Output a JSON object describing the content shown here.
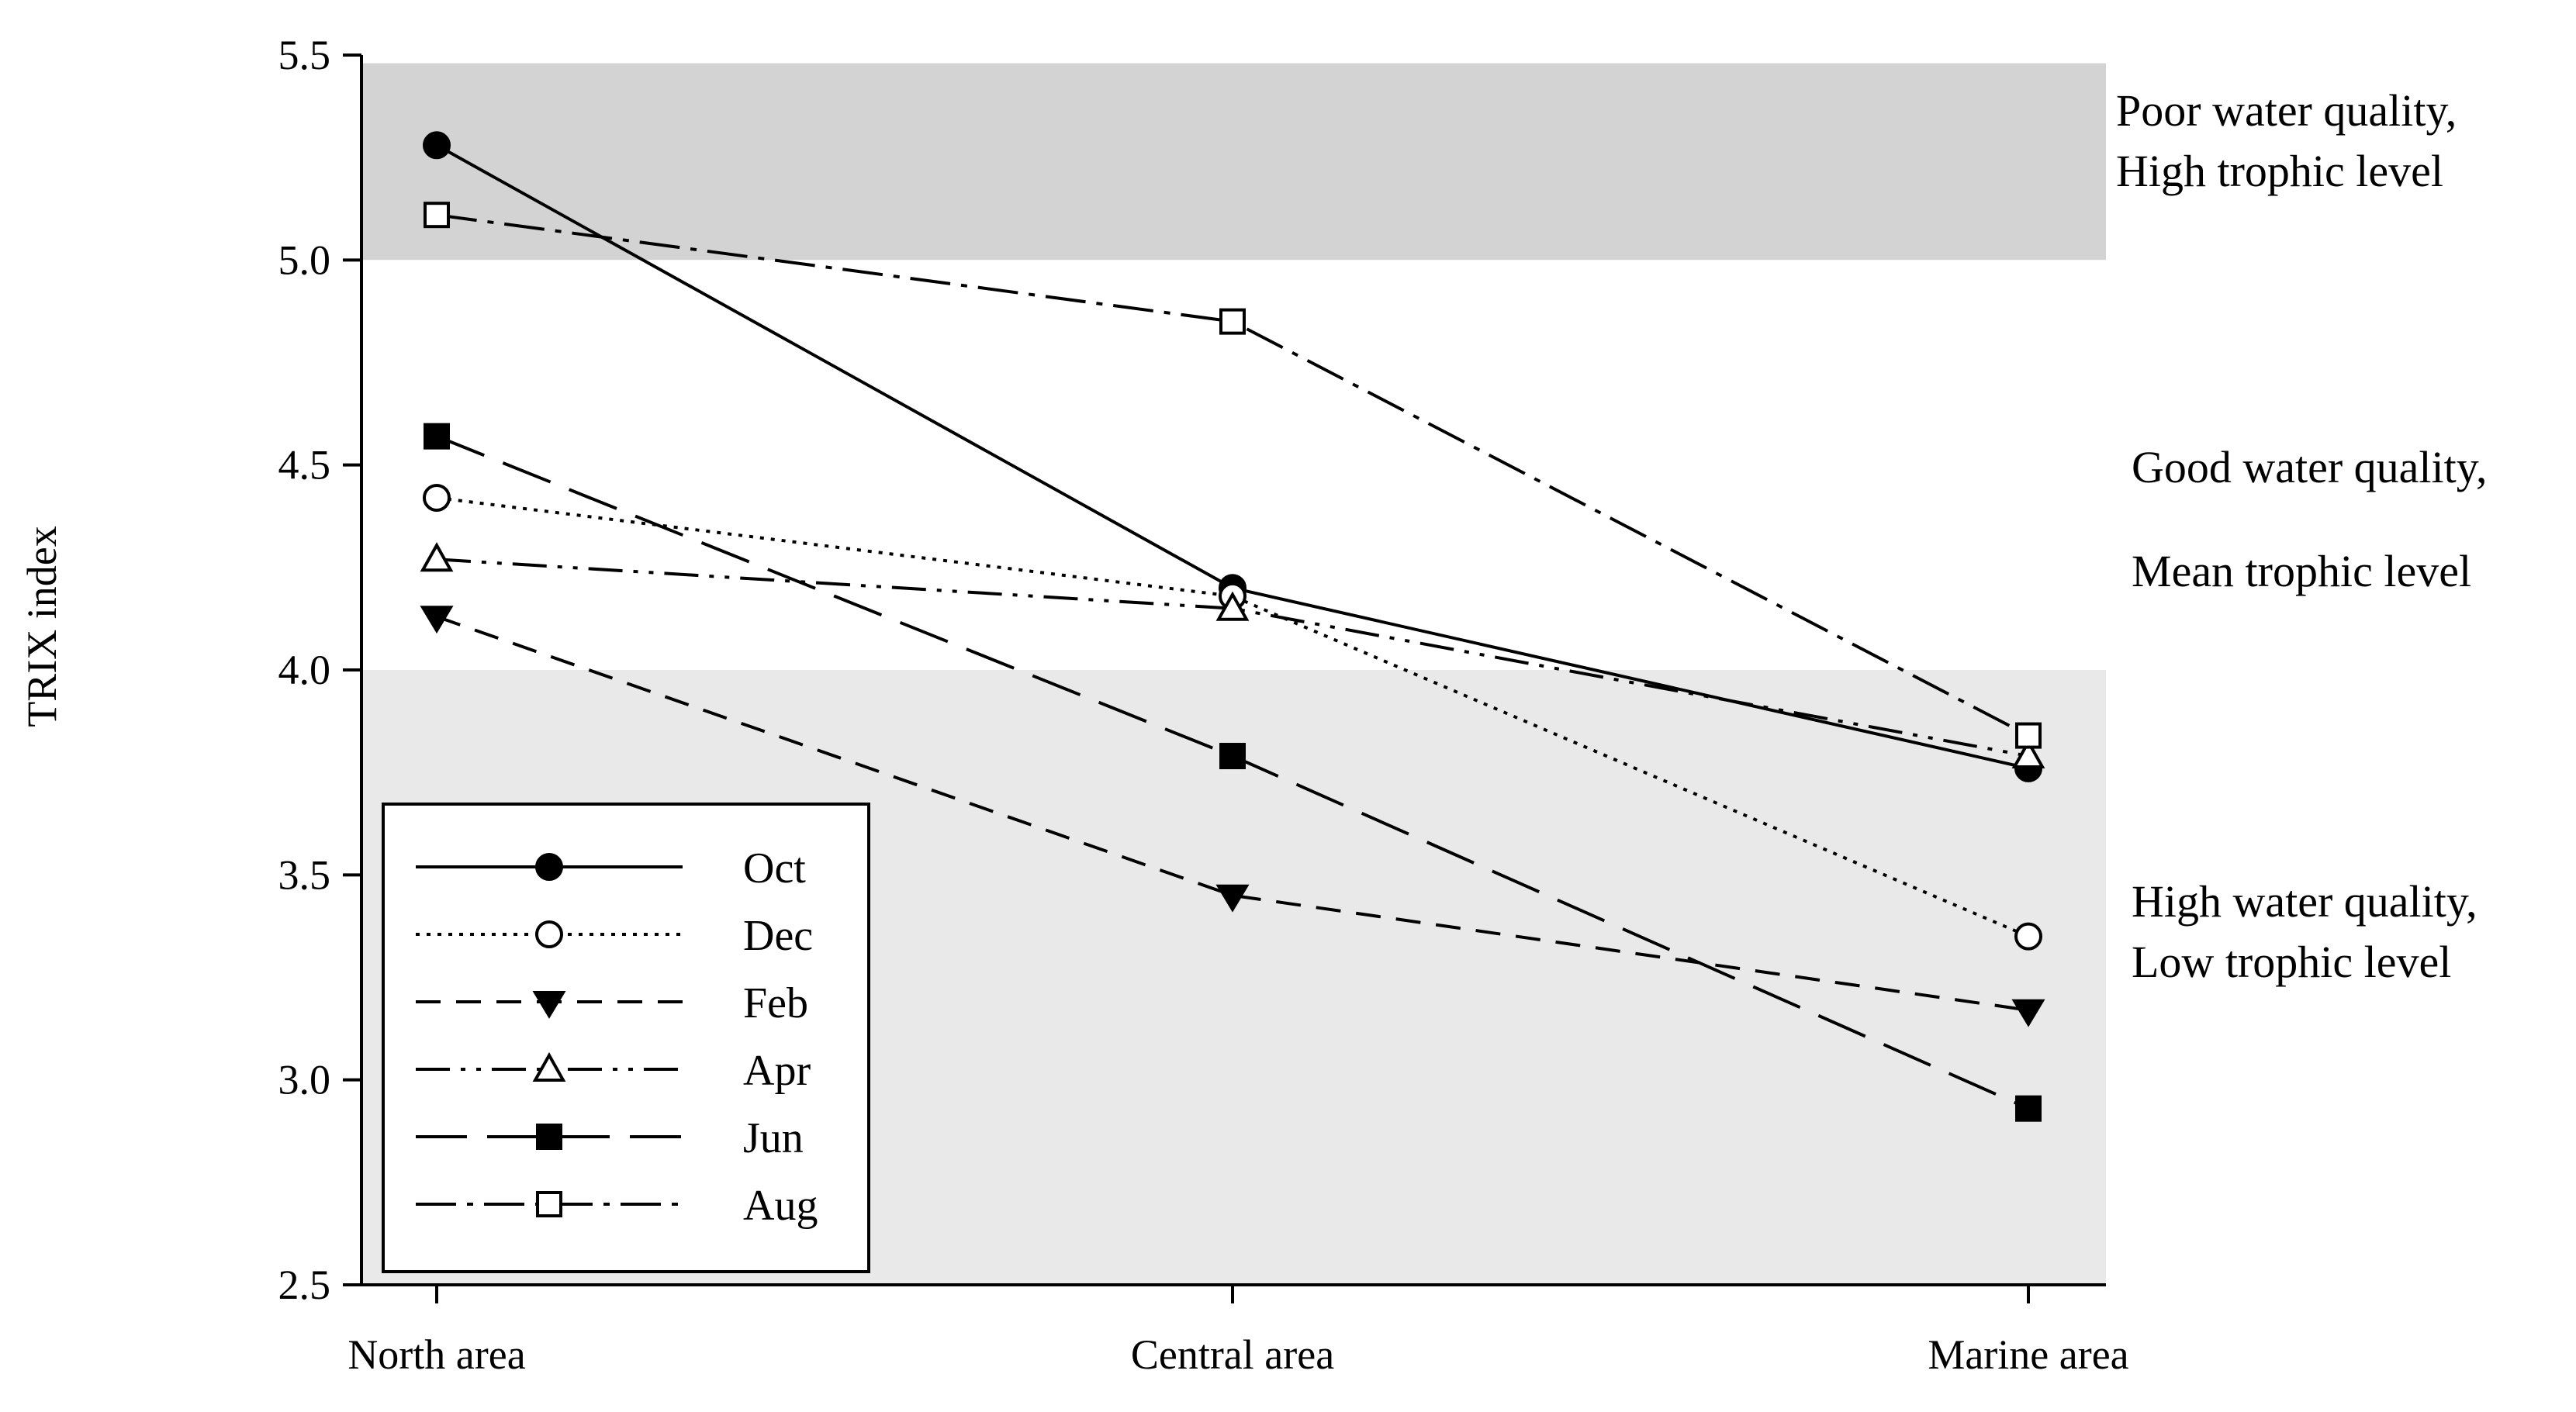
{
  "chart_data": {
    "type": "line",
    "ylabel": "TRIX index",
    "xlabel": "",
    "categories": [
      "North area",
      "Central area",
      "Marine area"
    ],
    "ylim": [
      2.5,
      5.5
    ],
    "yticks": [
      "2.5",
      "3.0",
      "3.5",
      "4.0",
      "4.5",
      "5.0",
      "5.5"
    ],
    "legend_position": "bottom-left",
    "series": [
      {
        "name": "Oct",
        "values": [
          5.28,
          4.2,
          3.76
        ],
        "marker": "filled-circle",
        "dash": "solid"
      },
      {
        "name": "Dec",
        "values": [
          4.42,
          4.18,
          3.35
        ],
        "marker": "open-circle",
        "dash": "dotted"
      },
      {
        "name": "Feb",
        "values": [
          4.13,
          3.45,
          3.17
        ],
        "marker": "filled-down-triangle",
        "dash": "dashed"
      },
      {
        "name": "Apr",
        "values": [
          4.27,
          4.15,
          3.79
        ],
        "marker": "open-triangle",
        "dash": "dash-dot-dot"
      },
      {
        "name": "Jun",
        "values": [
          4.57,
          3.79,
          2.93
        ],
        "marker": "filled-square",
        "dash": "long-dash"
      },
      {
        "name": "Aug",
        "values": [
          5.11,
          4.85,
          3.84
        ],
        "marker": "open-square",
        "dash": "dash-dot"
      }
    ],
    "bands": [
      {
        "from": 5.0,
        "to": 5.48,
        "color": "#d3d3d3",
        "lines": [
          "Poor water quality,",
          "High trophic level"
        ]
      },
      {
        "from": 4.0,
        "to": 5.0,
        "color": "#ffffff",
        "lines": [
          "Good water quality,",
          "Mean trophic level"
        ]
      },
      {
        "from": 2.5,
        "to": 4.0,
        "color": "#e9e9e9",
        "lines": [
          "High water quality,",
          "Low trophic level"
        ]
      }
    ]
  }
}
